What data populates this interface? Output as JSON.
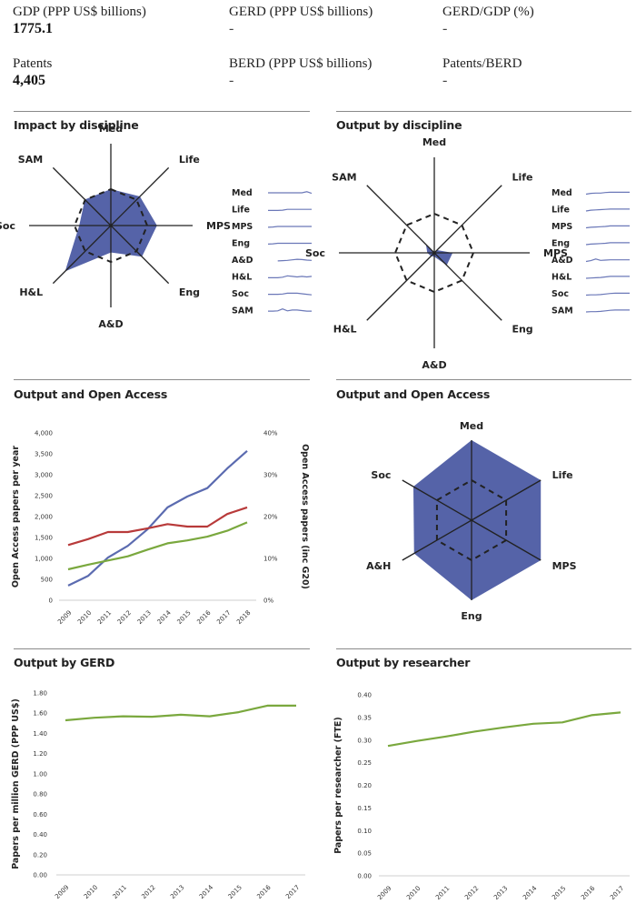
{
  "stats": [
    {
      "label": "GDP (PPP US$ billions)",
      "value": "1775.1"
    },
    {
      "label": "GERD (PPP US$ billions)",
      "value": "-"
    },
    {
      "label": "GERD/GDP (%)",
      "value": "-"
    },
    {
      "label": "Patents",
      "value": "4,405"
    },
    {
      "label": "BERD (PPP US$ billions)",
      "value": "-"
    },
    {
      "label": "Patents/BERD",
      "value": "-"
    }
  ],
  "colors": {
    "radar_fill": "#5563a8",
    "axis": "#222222",
    "blue_line": "#5b6bb0",
    "red_line": "#b83a3a",
    "green_line": "#7aa83e",
    "spark": "#6b78b8",
    "rule": "#8a8a8a"
  },
  "chart_data": [
    {
      "type": "radar",
      "title": "Impact by discipline",
      "axes": [
        "Med",
        "Life",
        "MPS",
        "Eng",
        "A&D",
        "H&L",
        "Soc",
        "SAM"
      ],
      "series": [
        {
          "name": "country",
          "values": [
            1.0,
            1.13,
            1.27,
            1.21,
            0.74,
            1.78,
            0.87,
            1.01
          ]
        },
        {
          "name": "reference (dashed)",
          "values": [
            1,
            1,
            1,
            1,
            1,
            1,
            1,
            1
          ]
        }
      ],
      "range": [
        0,
        2.4
      ],
      "sparklines": {
        "labels": [
          "Med",
          "Life",
          "MPS",
          "Eng",
          "A&D",
          "H&L",
          "Soc",
          "SAM"
        ],
        "series": [
          [
            0.5,
            0.5,
            0.5,
            0.5,
            0.5,
            0.5,
            0.5,
            0.5,
            0.3,
            0.6
          ],
          [
            0.65,
            0.65,
            0.65,
            0.6,
            0.45,
            0.45,
            0.45,
            0.45,
            0.45,
            0.45
          ],
          [
            0.65,
            0.6,
            0.5,
            0.5,
            0.5,
            0.5,
            0.5,
            0.5,
            0.5,
            0.5
          ],
          [
            0.65,
            0.6,
            0.5,
            0.5,
            0.5,
            0.5,
            0.5,
            0.5,
            0.5,
            0.5
          ],
          [
            0.7,
            null,
            0.65,
            0.6,
            0.55,
            0.45,
            0.35,
            0.4,
            0.5,
            0.55
          ],
          [
            0.65,
            0.65,
            0.65,
            0.55,
            0.3,
            0.4,
            0.5,
            0.4,
            0.5,
            0.4
          ],
          [
            0.6,
            0.6,
            0.6,
            0.55,
            0.4,
            0.4,
            0.4,
            0.5,
            0.6,
            0.7
          ],
          [
            0.6,
            0.6,
            0.55,
            0.2,
            0.55,
            0.4,
            0.4,
            0.5,
            0.6,
            0.6
          ]
        ]
      }
    },
    {
      "type": "radar",
      "title": "Output by discipline",
      "axes": [
        "Med",
        "Life",
        "MPS",
        "Eng",
        "A&D",
        "H&L",
        "Soc",
        "SAM"
      ],
      "series": [
        {
          "name": "country",
          "values": [
            0.02,
            0.1,
            0.47,
            0.45,
            0.1,
            0.12,
            0.18,
            0.3
          ]
        },
        {
          "name": "reference (dashed)",
          "values": [
            1,
            1,
            1,
            1,
            1,
            1,
            1,
            1
          ]
        }
      ],
      "range": [
        0,
        2.5
      ],
      "sparklines": {
        "labels": [
          "Med",
          "Life",
          "MPS",
          "Eng",
          "A&D",
          "H&L",
          "Soc",
          "SAM"
        ],
        "series": [
          [
            0.75,
            0.6,
            0.55,
            0.55,
            0.45,
            0.4,
            0.4,
            0.4,
            0.4,
            0.4
          ],
          [
            0.75,
            0.6,
            0.55,
            0.5,
            0.45,
            0.4,
            0.4,
            0.4,
            0.4,
            0.4
          ],
          [
            0.75,
            0.65,
            0.6,
            0.55,
            0.5,
            0.4,
            0.4,
            0.4,
            0.4,
            0.4
          ],
          [
            0.75,
            0.65,
            0.6,
            0.55,
            0.5,
            0.4,
            0.4,
            0.4,
            0.4,
            0.4
          ],
          [
            0.75,
            0.6,
            0.3,
            0.55,
            0.5,
            0.45,
            0.45,
            0.45,
            0.45,
            0.45
          ],
          [
            0.75,
            0.7,
            0.65,
            0.6,
            0.5,
            0.4,
            0.4,
            0.4,
            0.4,
            0.4
          ],
          [
            0.75,
            0.7,
            0.7,
            0.65,
            0.55,
            0.45,
            0.4,
            0.4,
            0.4,
            0.4
          ],
          [
            0.75,
            0.7,
            0.7,
            0.65,
            0.55,
            0.45,
            0.4,
            0.4,
            0.4,
            0.4
          ]
        ]
      }
    },
    {
      "type": "line",
      "title": "Output and Open Access",
      "x": [
        "2009",
        "2010",
        "2011",
        "2012",
        "2013",
        "2014",
        "2015",
        "2016",
        "2017",
        "2018"
      ],
      "series": [
        {
          "name": "blue",
          "axis": "left",
          "values": [
            350,
            580,
            1020,
            1300,
            1700,
            2220,
            2480,
            2680,
            3150,
            3570
          ]
        },
        {
          "name": "red",
          "axis": "right",
          "values": [
            13.2,
            14.6,
            16.3,
            16.3,
            17.2,
            18.2,
            17.6,
            17.6,
            20.6,
            22.2
          ]
        },
        {
          "name": "green",
          "axis": "right",
          "values": [
            7.4,
            8.5,
            9.5,
            10.5,
            12.1,
            13.6,
            14.3,
            15.2,
            16.6,
            18.6
          ]
        }
      ],
      "ylabel": "Open Access papers per year",
      "ylim": [
        0,
        4000
      ],
      "yticks": [
        "0",
        "500",
        "1,000",
        "1,500",
        "2,000",
        "2,500",
        "3,000",
        "3,500",
        "4,000"
      ],
      "y2label": "Open Access papers (inc G20)",
      "y2lim": [
        0,
        40
      ],
      "y2ticks": [
        "0%",
        "10%",
        "20%",
        "30%",
        "40%"
      ]
    },
    {
      "type": "radar",
      "title": "Output and Open Access",
      "axes": [
        "Med",
        "Life",
        "MPS",
        "Eng",
        "A&H",
        "Soc"
      ],
      "series": [
        {
          "name": "country",
          "values": [
            1.0,
            1.0,
            1.0,
            1.0,
            0.83,
            0.84
          ]
        },
        {
          "name": "reference (dashed)",
          "values": [
            0.5,
            0.5,
            0.5,
            0.5,
            0.5,
            0.5
          ]
        }
      ],
      "range": [
        0,
        1
      ]
    },
    {
      "type": "line",
      "title": "Output by GERD",
      "x": [
        "2009",
        "2010",
        "2011",
        "2012",
        "2013",
        "2014",
        "2015",
        "2016",
        "2017"
      ],
      "series": [
        {
          "name": "green",
          "values": [
            1.53,
            1.555,
            1.57,
            1.565,
            1.585,
            1.57,
            1.61,
            1.675,
            1.675
          ]
        }
      ],
      "ylabel": "Papers per million GERD (PPP US$)",
      "ylim": [
        0,
        1.8
      ],
      "yticks": [
        "0.00",
        "0.20",
        "0.40",
        "0.60",
        "0.80",
        "1.00",
        "1.20",
        "1.40",
        "1.60",
        "1.80"
      ]
    },
    {
      "type": "line",
      "title": "Output by researcher",
      "x": [
        "2009",
        "2010",
        "2011",
        "2012",
        "2013",
        "2014",
        "2015",
        "2016",
        "2017"
      ],
      "series": [
        {
          "name": "green",
          "values": [
            0.287,
            0.298,
            0.308,
            0.319,
            0.328,
            0.336,
            0.339,
            0.355,
            0.361
          ]
        }
      ],
      "ylabel": "Papers per researcher (FTE)",
      "ylim": [
        0,
        0.4
      ],
      "yticks": [
        "0.00",
        "0.05",
        "0.10",
        "0.15",
        "0.20",
        "0.25",
        "0.30",
        "0.35",
        "0.40"
      ]
    }
  ]
}
